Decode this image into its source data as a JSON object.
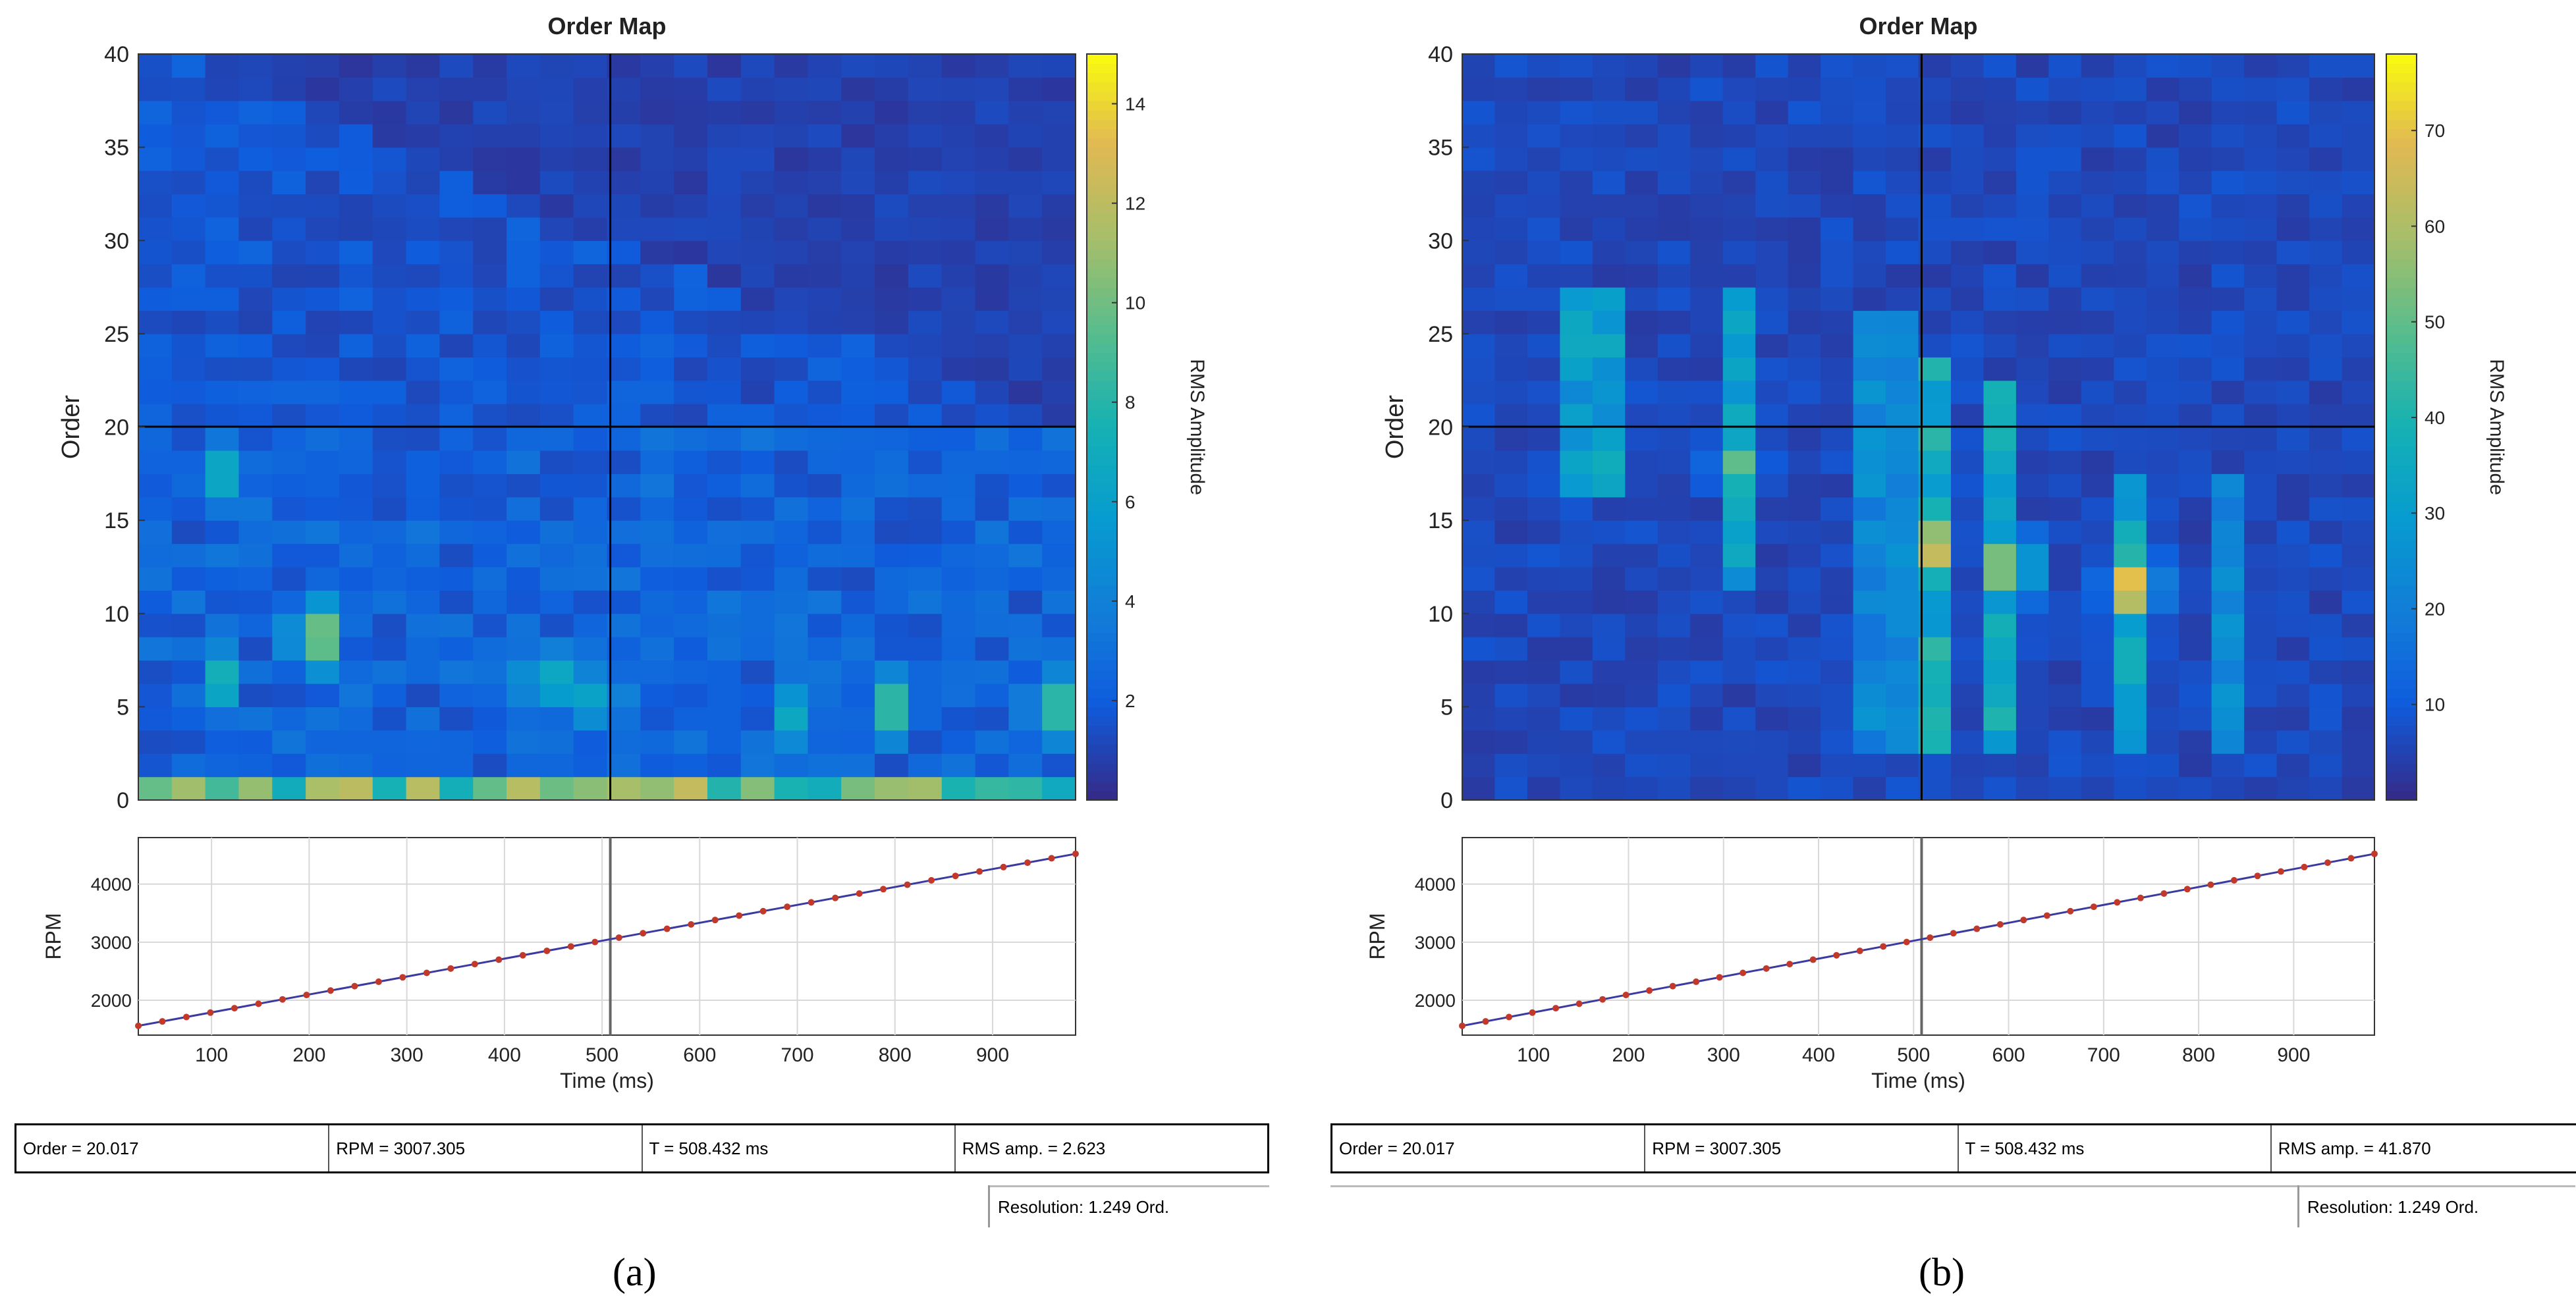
{
  "chart_data": [
    {
      "type": "heatmap",
      "panel_label": "a",
      "title": "Order Map",
      "xlabel": "Time (ms)",
      "ylabel": "Order",
      "colorbar_label": "RMS Amplitude",
      "xlim": [
        25,
        985
      ],
      "ylim": [
        0,
        40
      ],
      "yticks": [
        0,
        5,
        10,
        15,
        20,
        25,
        30,
        35,
        40
      ],
      "clim": [
        0,
        15
      ],
      "cticks": [
        2,
        4,
        6,
        8,
        10,
        12,
        14
      ],
      "cursor": {
        "time_ms": 508.432,
        "order": 20.017
      },
      "columns": 28,
      "rows": 32,
      "amplitude_model": {
        "background": 1.6,
        "order_boundary": 19.5,
        "low_order_band": {
          "order_max": 1.2,
          "level": 9.5
        },
        "hot_spots": [
          {
            "time_ms": 205,
            "order": 8.8,
            "value": 11.5
          },
          {
            "time_ms": 110,
            "order": 17.5,
            "value": 7.0
          },
          {
            "time_ms": 110,
            "order": 6.5,
            "value": 7.5
          },
          {
            "time_ms": 440,
            "order": 6.5,
            "value": 8.5
          },
          {
            "time_ms": 800,
            "order": 5.0,
            "value": 9.0
          },
          {
            "time_ms": 960,
            "order": 5.0,
            "value": 9.5
          },
          {
            "time_ms": 500,
            "order": 5.5,
            "value": 7.5
          },
          {
            "time_ms": 700,
            "order": 4.5,
            "value": 7.0
          }
        ]
      },
      "rpm_plot": {
        "ylabel": "RPM",
        "xlabel": "Time (ms)",
        "xticks": [
          100,
          200,
          300,
          400,
          500,
          600,
          700,
          800,
          900
        ],
        "yticks": [
          2000,
          3000,
          4000
        ],
        "ylim": [
          1400,
          4800
        ],
        "series": {
          "name": "RPM",
          "x": [
            25,
            985
          ],
          "y": [
            1560,
            4520
          ]
        },
        "marker_count": 40
      },
      "readout": {
        "order": "Order = 20.017",
        "rpm": "RPM = 3007.305",
        "time": "T = 508.432 ms",
        "rms": "RMS amp. = 2.623"
      },
      "resolution": "Resolution: 1.249 Ord."
    },
    {
      "type": "heatmap",
      "panel_label": "b",
      "title": "Order Map",
      "xlabel": "Time (ms)",
      "ylabel": "Order",
      "colorbar_label": "RMS Amplitude",
      "xlim": [
        25,
        985
      ],
      "ylim": [
        0,
        40
      ],
      "yticks": [
        0,
        5,
        10,
        15,
        20,
        25,
        30,
        35,
        40
      ],
      "clim": [
        0,
        78
      ],
      "cticks": [
        10,
        20,
        30,
        40,
        50,
        60,
        70
      ],
      "cursor": {
        "time_ms": 508.432,
        "order": 20.017
      },
      "columns": 28,
      "rows": 32,
      "amplitude_model": {
        "background": 6,
        "vertical_streaks": [
          {
            "time_ms": 165,
            "order_range": [
              16,
              28
            ],
            "value": 32
          },
          {
            "time_ms": 315,
            "order_range": [
              11,
              28
            ],
            "value": 34
          },
          {
            "time_ms": 470,
            "order_range": [
              3,
              26
            ],
            "value": 24
          },
          {
            "time_ms": 515,
            "order_range": [
              3,
              24
            ],
            "value": 38
          },
          {
            "time_ms": 600,
            "order_range": [
              3,
              22
            ],
            "value": 36
          },
          {
            "time_ms": 730,
            "order_range": [
              3,
              18
            ],
            "value": 34
          },
          {
            "time_ms": 830,
            "order_range": [
              3,
              18
            ],
            "value": 24
          }
        ],
        "hot_spots": [
          {
            "time_ms": 515,
            "order": 13.5,
            "value": 70
          },
          {
            "time_ms": 600,
            "order": 12.5,
            "value": 64
          },
          {
            "time_ms": 730,
            "order": 11.5,
            "value": 72
          },
          {
            "time_ms": 315,
            "order": 18.0,
            "value": 50
          }
        ]
      },
      "rpm_plot": {
        "ylabel": "RPM",
        "xlabel": "Time (ms)",
        "xticks": [
          100,
          200,
          300,
          400,
          500,
          600,
          700,
          800,
          900
        ],
        "yticks": [
          2000,
          3000,
          4000
        ],
        "ylim": [
          1400,
          4800
        ],
        "series": {
          "name": "RPM",
          "x": [
            25,
            985
          ],
          "y": [
            1560,
            4520
          ]
        },
        "marker_count": 40
      },
      "readout": {
        "order": "Order = 20.017",
        "rpm": "RPM = 3007.305",
        "time": "T = 508.432 ms",
        "rms": "RMS amp. = 41.870"
      },
      "resolution": "Resolution: 1.249 Ord."
    }
  ],
  "captions": {
    "a": "(a)",
    "b": "(b)"
  }
}
